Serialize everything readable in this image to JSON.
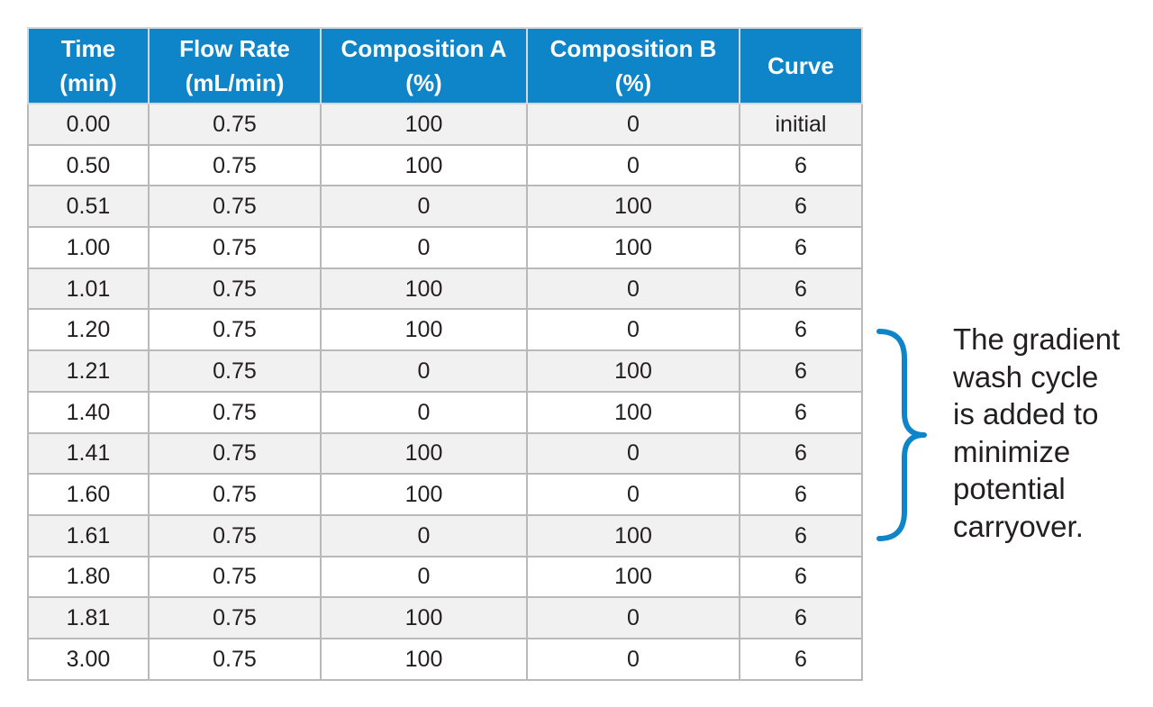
{
  "table": {
    "headers": [
      "Time\n(min)",
      "Flow Rate\n(mL/min)",
      "Composition A\n(%)",
      "Composition B\n(%)",
      "Curve"
    ],
    "rows": [
      [
        "0.00",
        "0.75",
        "100",
        "0",
        "initial"
      ],
      [
        "0.50",
        "0.75",
        "100",
        "0",
        "6"
      ],
      [
        "0.51",
        "0.75",
        "0",
        "100",
        "6"
      ],
      [
        "1.00",
        "0.75",
        "0",
        "100",
        "6"
      ],
      [
        "1.01",
        "0.75",
        "100",
        "0",
        "6"
      ],
      [
        "1.20",
        "0.75",
        "100",
        "0",
        "6"
      ],
      [
        "1.21",
        "0.75",
        "0",
        "100",
        "6"
      ],
      [
        "1.40",
        "0.75",
        "0",
        "100",
        "6"
      ],
      [
        "1.41",
        "0.75",
        "100",
        "0",
        "6"
      ],
      [
        "1.60",
        "0.75",
        "100",
        "0",
        "6"
      ],
      [
        "1.61",
        "0.75",
        "0",
        "100",
        "6"
      ],
      [
        "1.80",
        "0.75",
        "0",
        "100",
        "6"
      ],
      [
        "1.81",
        "0.75",
        "100",
        "0",
        "6"
      ],
      [
        "3.00",
        "0.75",
        "100",
        "0",
        "6"
      ]
    ]
  },
  "annotation": {
    "text": "The gradient\nwash cycle\nis added to\nminimize\npotential\ncarryover."
  },
  "colors": {
    "header_background": "#0f85c9",
    "header_text": "#ffffff",
    "brace": "#0f85c9",
    "row_alt_background": "#f1f1f2",
    "grid_line": "#b9b9bb"
  }
}
